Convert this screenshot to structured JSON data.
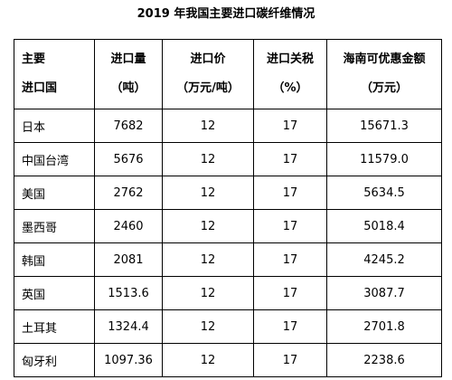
{
  "title": "2019 年我国主要进口碳纤维情况",
  "headers": [
    {
      "line1": "主要",
      "line2": "进口国"
    },
    {
      "line1": "进口量",
      "line2": "（吨）"
    },
    {
      "line1": "进口价",
      "line2": "（万元/吨）"
    },
    {
      "line1": "进口关税",
      "line2": "（%）"
    },
    {
      "line1": "海南可优惠金额",
      "line2": "（万元）"
    }
  ],
  "rows": [
    {
      "country": "日本",
      "volume": "7682",
      "price": "12",
      "tariff": "17",
      "discount": "15671.3"
    },
    {
      "country": "中国台湾",
      "volume": "5676",
      "price": "12",
      "tariff": "17",
      "discount": "11579.0"
    },
    {
      "country": "美国",
      "volume": "2762",
      "price": "12",
      "tariff": "17",
      "discount": "5634.5"
    },
    {
      "country": "墨西哥",
      "volume": "2460",
      "price": "12",
      "tariff": "17",
      "discount": "5018.4"
    },
    {
      "country": "韩国",
      "volume": "2081",
      "price": "12",
      "tariff": "17",
      "discount": "4245.2"
    },
    {
      "country": "英国",
      "volume": "1513.6",
      "price": "12",
      "tariff": "17",
      "discount": "3087.7"
    },
    {
      "country": "土耳其",
      "volume": "1324.4",
      "price": "12",
      "tariff": "17",
      "discount": "2701.8"
    },
    {
      "country": "匈牙利",
      "volume": "1097.36",
      "price": "12",
      "tariff": "17",
      "discount": "2238.6"
    }
  ]
}
